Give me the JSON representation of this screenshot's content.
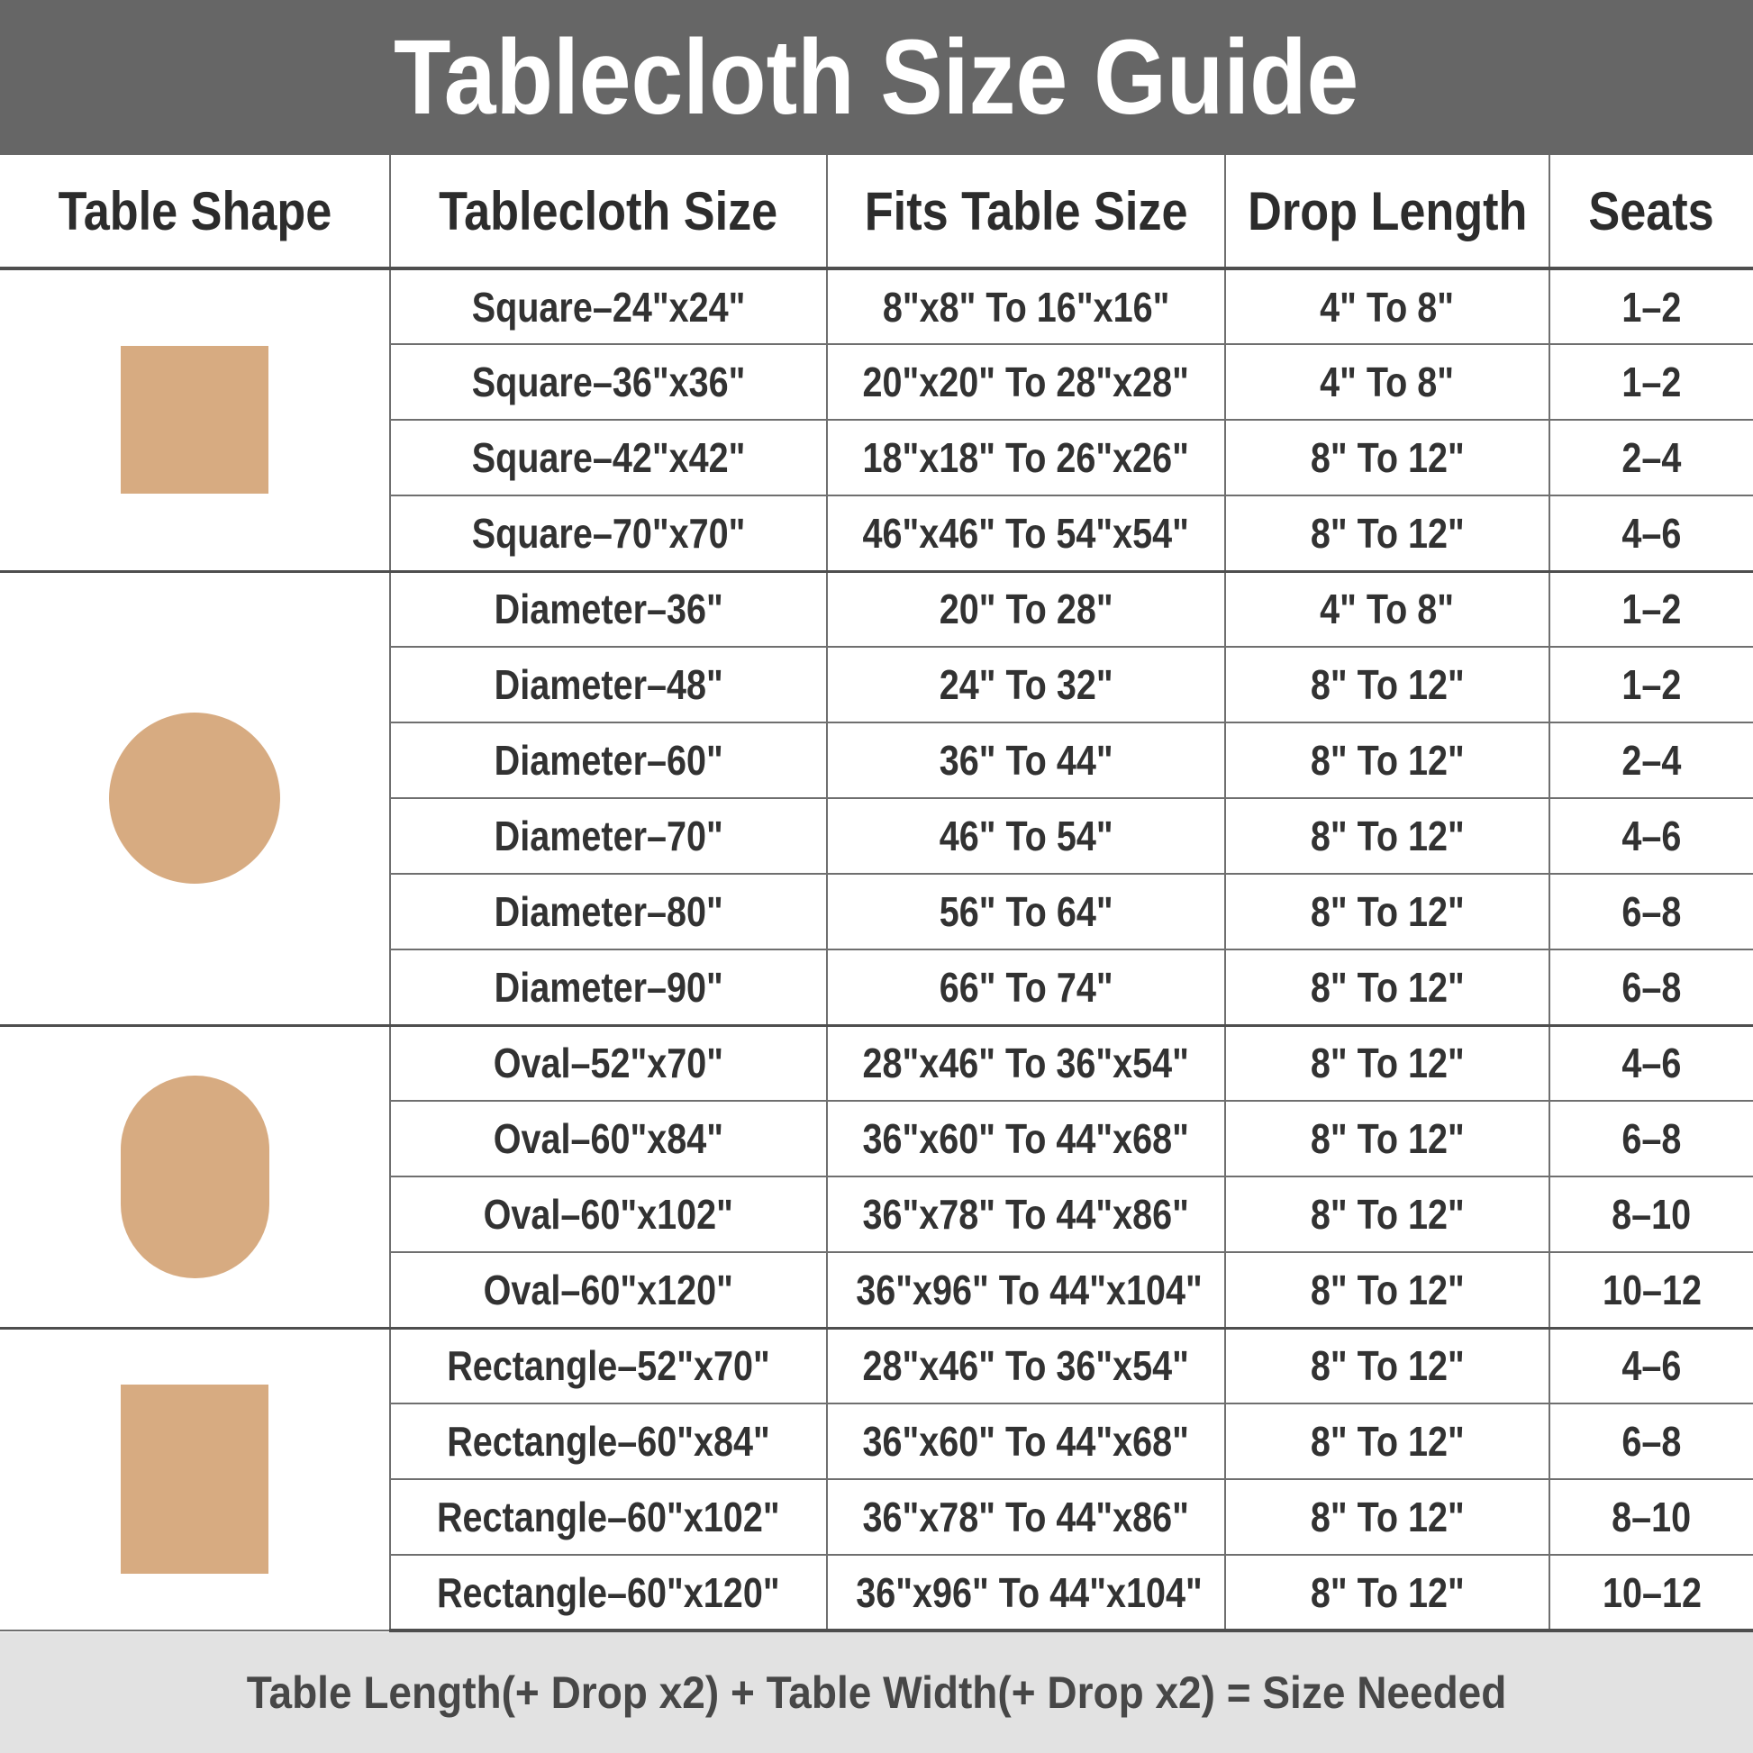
{
  "title": "Tablecloth Size Guide",
  "footer": "Table Length(+ Drop x2) + Table Width(+ Drop x2) = Size Needed",
  "chart_data": {
    "type": "table",
    "columns": [
      "Table Shape",
      "Tablecloth Size",
      "Fits Table Size",
      "Drop Length",
      "Seats"
    ],
    "groups": [
      {
        "shape": "square",
        "rows": [
          {
            "size": "Square–24\"x24\"",
            "fits": "8\"x8\" To 16\"x16\"",
            "drop": "4\" To 8\"",
            "seats": "1–2"
          },
          {
            "size": "Square–36\"x36\"",
            "fits": "20\"x20\" To 28\"x28\"",
            "drop": "4\" To 8\"",
            "seats": "1–2"
          },
          {
            "size": "Square–42\"x42\"",
            "fits": "18\"x18\" To 26\"x26\"",
            "drop": "8\" To 12\"",
            "seats": "2–4"
          },
          {
            "size": "Square–70\"x70\"",
            "fits": "46\"x46\" To 54\"x54\"",
            "drop": "8\" To 12\"",
            "seats": "4–6"
          }
        ]
      },
      {
        "shape": "circle",
        "rows": [
          {
            "size": "Diameter–36\"",
            "fits": "20\" To 28\"",
            "drop": "4\" To 8\"",
            "seats": "1–2"
          },
          {
            "size": "Diameter–48\"",
            "fits": "24\" To 32\"",
            "drop": "8\" To 12\"",
            "seats": "1–2"
          },
          {
            "size": "Diameter–60\"",
            "fits": "36\" To 44\"",
            "drop": "8\" To 12\"",
            "seats": "2–4"
          },
          {
            "size": "Diameter–70\"",
            "fits": "46\" To 54\"",
            "drop": "8\" To 12\"",
            "seats": "4–6"
          },
          {
            "size": "Diameter–80\"",
            "fits": "56\" To 64\"",
            "drop": "8\" To 12\"",
            "seats": "6–8"
          },
          {
            "size": "Diameter–90\"",
            "fits": "66\" To 74\"",
            "drop": "8\" To 12\"",
            "seats": "6–8"
          }
        ]
      },
      {
        "shape": "oval",
        "rows": [
          {
            "size": "Oval–52\"x70\"",
            "fits": "28\"x46\" To 36\"x54\"",
            "drop": "8\" To 12\"",
            "seats": "4–6"
          },
          {
            "size": "Oval–60\"x84\"",
            "fits": "36\"x60\" To 44\"x68\"",
            "drop": "8\" To 12\"",
            "seats": "6–8"
          },
          {
            "size": "Oval–60\"x102\"",
            "fits": "36\"x78\" To 44\"x86\"",
            "drop": "8\" To 12\"",
            "seats": "8–10"
          },
          {
            "size": "Oval–60\"x120\"",
            "fits": "36\"x96\" To 44\"x104\"",
            "drop": "8\" To 12\"",
            "seats": "10–12"
          }
        ]
      },
      {
        "shape": "rectangle",
        "rows": [
          {
            "size": "Rectangle–52\"x70\"",
            "fits": "28\"x46\" To 36\"x54\"",
            "drop": "8\" To 12\"",
            "seats": "4–6"
          },
          {
            "size": "Rectangle–60\"x84\"",
            "fits": "36\"x60\" To 44\"x68\"",
            "drop": "8\" To 12\"",
            "seats": "6–8"
          },
          {
            "size": "Rectangle–60\"x102\"",
            "fits": "36\"x78\" To 44\"x86\"",
            "drop": "8\" To 12\"",
            "seats": "8–10"
          },
          {
            "size": "Rectangle–60\"x120\"",
            "fits": "36\"x96\" To 44\"x104\"",
            "drop": "8\" To 12\"",
            "seats": "10–12"
          }
        ]
      }
    ]
  },
  "colors": {
    "banner_bg": "#666666",
    "title_text": "#FFFFFF",
    "shape_fill": "#D7AB81",
    "footer_bg": "#E2E2E2",
    "border_thin": "#6F6F6F",
    "border_thick": "#4E4E4E",
    "header_text": "#2C2C2C",
    "cell_text": "#323232",
    "footer_text": "#474747"
  }
}
